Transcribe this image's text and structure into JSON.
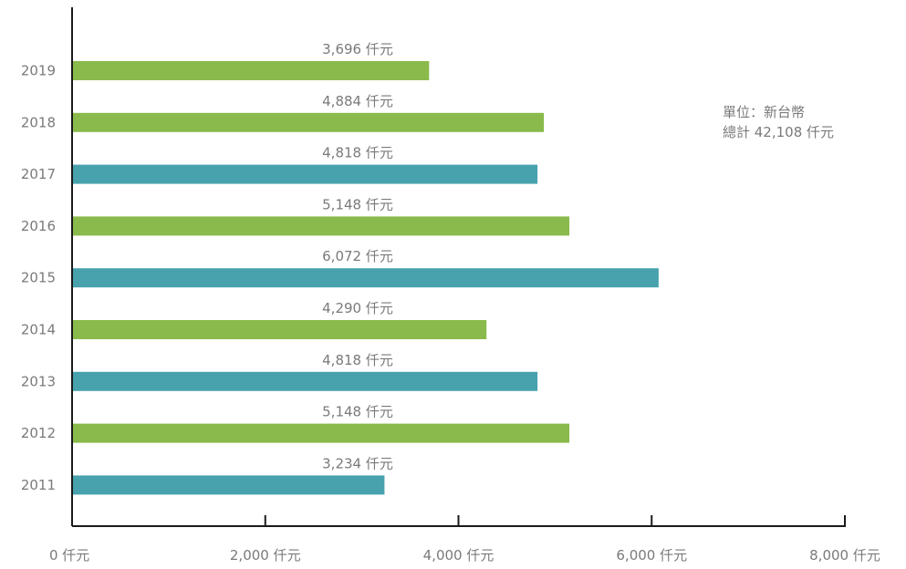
{
  "chart_data": {
    "type": "bar",
    "orientation": "horizontal",
    "title": "",
    "xlabel": "",
    "ylabel": "",
    "xlim": [
      0,
      8000
    ],
    "grid": false,
    "categories": [
      "2019",
      "2018",
      "2017",
      "2016",
      "2015",
      "2014",
      "2013",
      "2012",
      "2011"
    ],
    "values": [
      3696,
      4884,
      4818,
      5148,
      6072,
      4290,
      4818,
      5148,
      3234
    ],
    "value_labels": [
      "3,696 仟元",
      "4,884 仟元",
      "4,818 仟元",
      "5,148 仟元",
      "6,072 仟元",
      "4,290 仟元",
      "4,818 仟元",
      "5,148 仟元",
      "3,234 仟元"
    ],
    "bar_colors": [
      "#8aba4b",
      "#8aba4b",
      "#47a2ae",
      "#8aba4b",
      "#47a2ae",
      "#8aba4b",
      "#47a2ae",
      "#8aba4b",
      "#47a2ae"
    ],
    "x_ticks": [
      0,
      2000,
      4000,
      6000,
      8000
    ],
    "x_tick_labels": [
      "0 仟元",
      "2,000 仟元",
      "4,000 仟元",
      "6,000 仟元",
      "8,000 仟元"
    ],
    "annotation": {
      "line1": "單位：新台幣",
      "line2": "總計 42,108 仟元"
    }
  },
  "colors": {
    "green": "#8aba4b",
    "teal": "#47a2ae",
    "axis": "#1a1a1a",
    "text": "#7a7a7a"
  }
}
